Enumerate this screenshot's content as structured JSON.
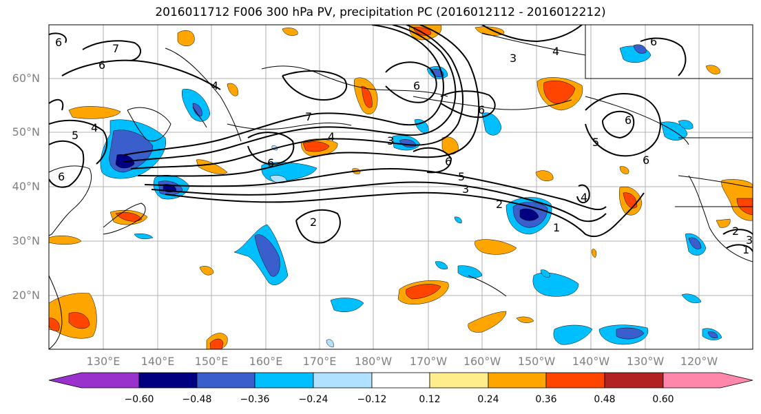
{
  "title": "2016011712 F006 300 hPa PV, precipitation PC (2016012112 - 2016012212)",
  "lat_labels": [
    "60°N",
    "50°N",
    "40°N",
    "30°N",
    "20°N"
  ],
  "lon_labels": [
    "130°E",
    "140°E",
    "150°E",
    "160°E",
    "170°E",
    "180°W",
    "170°W",
    "160°W",
    "150°W",
    "140°W",
    "130°W",
    "120°W"
  ],
  "colorbar": {
    "ticks": [
      "−0.60",
      "−0.48",
      "−0.36",
      "−0.24",
      "−0.12",
      "0.12",
      "0.24",
      "0.36",
      "0.48",
      "0.60"
    ],
    "colors": [
      "#9932cc",
      "#000080",
      "#3a5fcd",
      "#00bfff",
      "#b0e2ff",
      "#ffffff",
      "#ffec8b",
      "#ffa500",
      "#ff4500",
      "#b22222",
      "#ff88aa"
    ]
  },
  "contour_labels": [
    "7",
    "6",
    "6",
    "5",
    "4",
    "6",
    "4",
    "7",
    "6",
    "3",
    "4",
    "6",
    "2",
    "3",
    "4",
    "5",
    "6",
    "6",
    "6",
    "6",
    "1",
    "2",
    "3",
    "4",
    "5",
    "6",
    "1",
    "2",
    "3"
  ]
}
